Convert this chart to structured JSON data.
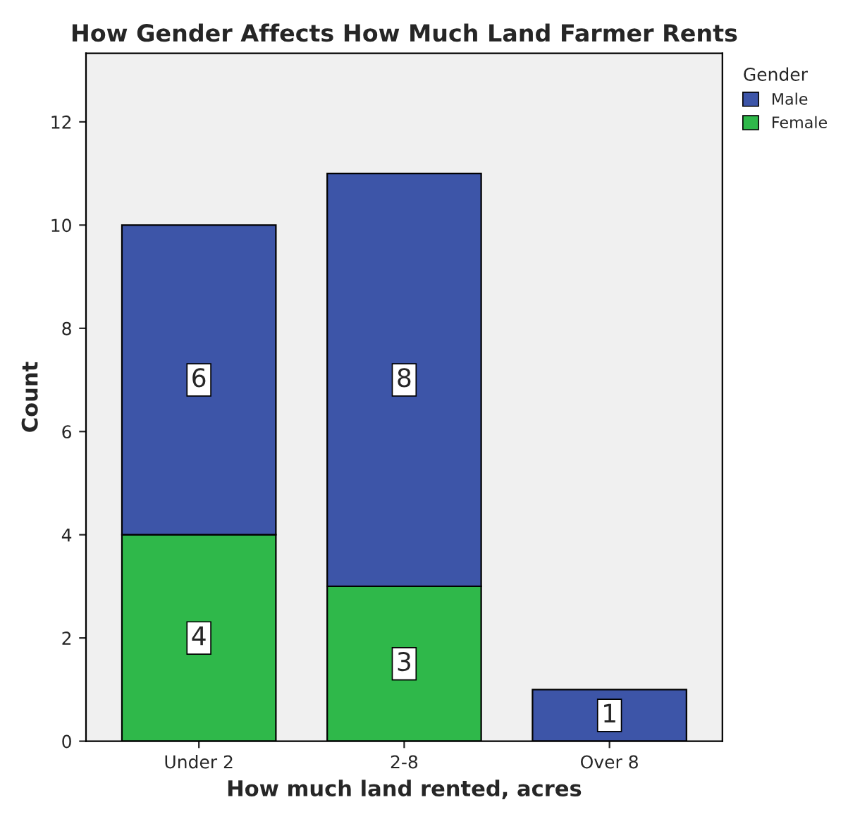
{
  "chart_data": {
    "type": "bar",
    "title": "How Gender Affects How Much Land Farmer Rents",
    "xlabel": "How much land rented, acres",
    "ylabel": "Count",
    "legend_title": "Gender",
    "categories": [
      "Under 2",
      "2-8",
      "Over 8"
    ],
    "stacked": true,
    "series": [
      {
        "name": "Female",
        "color": "#2fb84a",
        "values": [
          4,
          3,
          null
        ]
      },
      {
        "name": "Male",
        "color": "#3d55a8",
        "values": [
          6,
          8,
          1
        ]
      }
    ],
    "ylim": [
      0,
      13.33
    ],
    "yticks": [
      0,
      2,
      4,
      6,
      8,
      10,
      12
    ],
    "grid": false,
    "legend": "top right",
    "data_labels": true
  }
}
